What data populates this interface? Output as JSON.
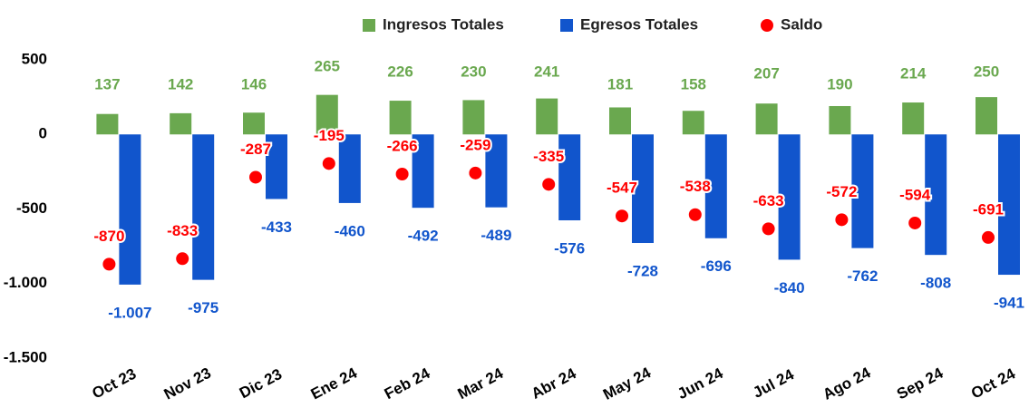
{
  "chart_data": {
    "type": "bar",
    "categories": [
      "Oct 23",
      "Nov 23",
      "Dic 23",
      "Ene 24",
      "Feb 24",
      "Mar 24",
      "Abr 24",
      "May 24",
      "Jun 24",
      "Jul 24",
      "Ago 24",
      "Sep 24",
      "Oct 24"
    ],
    "series": [
      {
        "name": "Ingresos Totales",
        "color": "#6aa84f",
        "type": "bar",
        "values": [
          137,
          142,
          146,
          265,
          226,
          230,
          241,
          181,
          158,
          207,
          190,
          214,
          250
        ]
      },
      {
        "name": "Egresos Totales",
        "color": "#1155cc",
        "type": "bar",
        "values": [
          -1007,
          -975,
          -433,
          -460,
          -492,
          -489,
          -576,
          -728,
          -696,
          -840,
          -762,
          -808,
          -941
        ],
        "value_labels": [
          "-1.007",
          "-975",
          "-433",
          "-460",
          "-492",
          "-489",
          "-576",
          "-728",
          "-696",
          "-840",
          "-762",
          "-808",
          "-941"
        ]
      },
      {
        "name": "Saldo",
        "color": "#ff0000",
        "type": "scatter",
        "values": [
          -870,
          -833,
          -287,
          -195,
          -266,
          -259,
          -335,
          -547,
          -538,
          -633,
          -572,
          -594,
          -691
        ]
      }
    ],
    "ylim": [
      -1500,
      500
    ],
    "yticks": [
      500,
      0,
      -500,
      {
        "value": -1000,
        "label": "-1.000"
      },
      {
        "value": -1500,
        "label": "-1.500"
      }
    ],
    "legend": "top"
  }
}
